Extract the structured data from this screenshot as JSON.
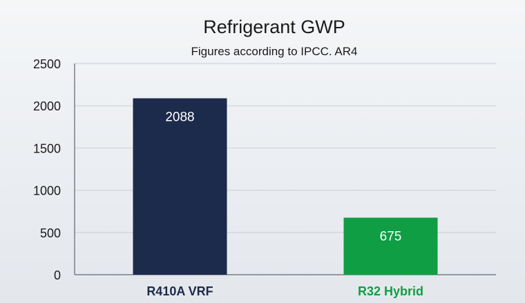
{
  "chart_data": {
    "type": "bar",
    "title": "Refrigerant GWP",
    "subtitle": "Figures according to IPCC. AR4",
    "categories": [
      "R410A VRF",
      "R32 Hybrid"
    ],
    "values": [
      2088,
      675
    ],
    "data_labels": [
      "2088",
      "675"
    ],
    "bar_colors": [
      "#1c2a4b",
      "#0f9e44"
    ],
    "category_label_colors": [
      "#1c2a4b",
      "#0f9e44"
    ],
    "xlabel": "",
    "ylabel": "",
    "ylim": [
      0,
      2500
    ],
    "yticks": [
      0,
      500,
      1000,
      1500,
      2000,
      2500
    ],
    "ytick_labels": [
      "0",
      "500",
      "1000",
      "1500",
      "2000",
      "2500"
    ],
    "grid": true,
    "legend": "none"
  }
}
